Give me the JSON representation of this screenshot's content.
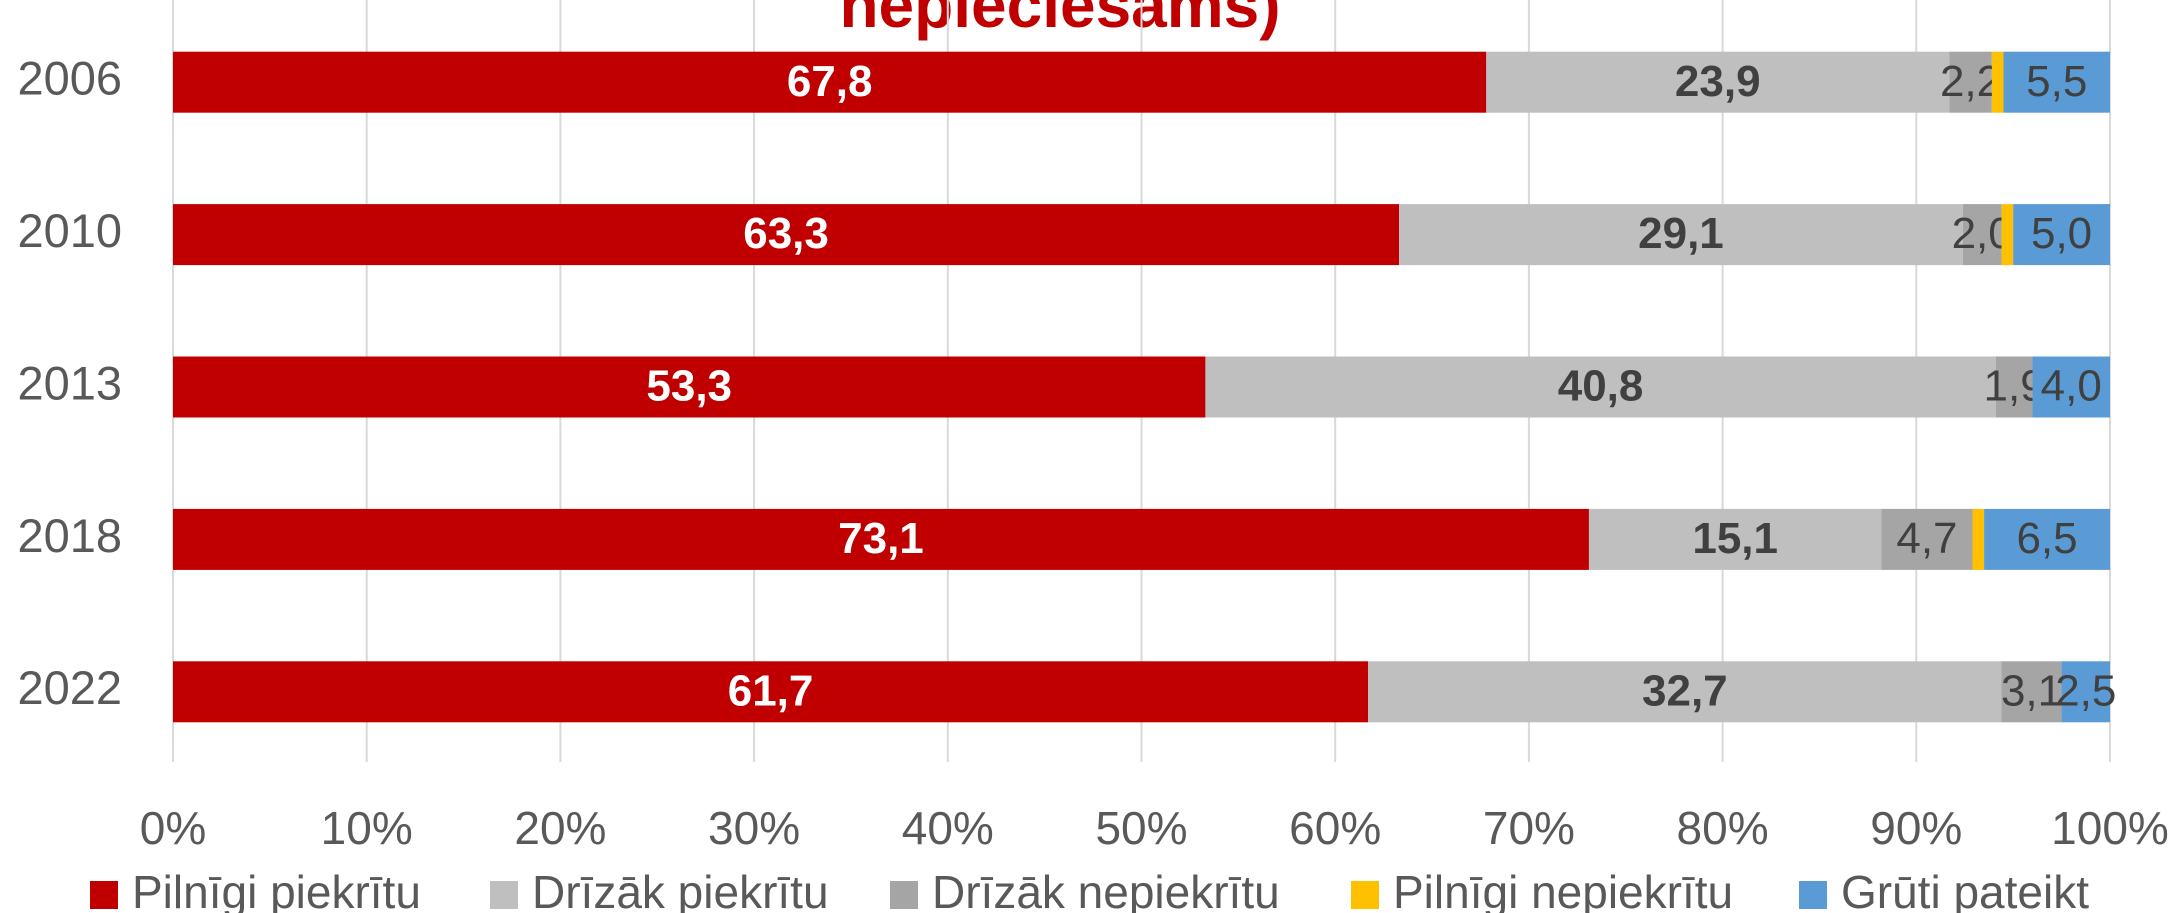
{
  "chart_data": {
    "type": "stacked_bar_horizontal",
    "title": "nepieciešams)",
    "categories": [
      "2006",
      "2010",
      "2013",
      "2018",
      "2022"
    ],
    "series": [
      {
        "name": "Pilnīgi piekrītu",
        "color": "#c00000",
        "values": [
          67.8,
          63.3,
          53.3,
          73.1,
          61.7
        ],
        "value_labels": [
          "67,8",
          "63,3",
          "53,3",
          "73,1",
          "61,7"
        ]
      },
      {
        "name": "Drīzāk piekrītu",
        "color": "#bfbfbf",
        "values": [
          23.9,
          29.1,
          40.8,
          15.1,
          32.7
        ],
        "value_labels": [
          "23,9",
          "29,1",
          "40,8",
          "15,1",
          "32,7"
        ]
      },
      {
        "name": "Drīzāk nepiekrītu",
        "color": "#a5a5a5",
        "values": [
          2.2,
          2.0,
          1.9,
          4.7,
          3.1
        ],
        "value_labels": [
          "2,2",
          "2,0",
          "1,9",
          "4,7",
          "3,1"
        ]
      },
      {
        "name": "Pilnīgi nepiekrītu",
        "color": "#ffc000",
        "values": [
          0.6,
          0.6,
          0.0,
          0.6,
          0.0
        ]
      },
      {
        "name": "Grūti pateikt",
        "color": "#5b9bd5",
        "values": [
          5.5,
          5.0,
          4.0,
          6.5,
          2.5
        ],
        "value_labels": [
          "5,5",
          "5,0",
          "4,0",
          "6,5",
          "2,5"
        ]
      }
    ],
    "xlim": [
      0,
      100
    ],
    "xticks": [
      {
        "value": 0,
        "label": "0%"
      },
      {
        "value": 10,
        "label": "10%"
      },
      {
        "value": 20,
        "label": "20%"
      },
      {
        "value": 30,
        "label": "30%"
      },
      {
        "value": 40,
        "label": "40%"
      },
      {
        "value": 50,
        "label": "50%"
      },
      {
        "value": 60,
        "label": "60%"
      },
      {
        "value": 70,
        "label": "70%"
      },
      {
        "value": 80,
        "label": "80%"
      },
      {
        "value": 90,
        "label": "90%"
      },
      {
        "value": 100,
        "label": "100%"
      }
    ],
    "grid": true,
    "legend": "bottom"
  }
}
